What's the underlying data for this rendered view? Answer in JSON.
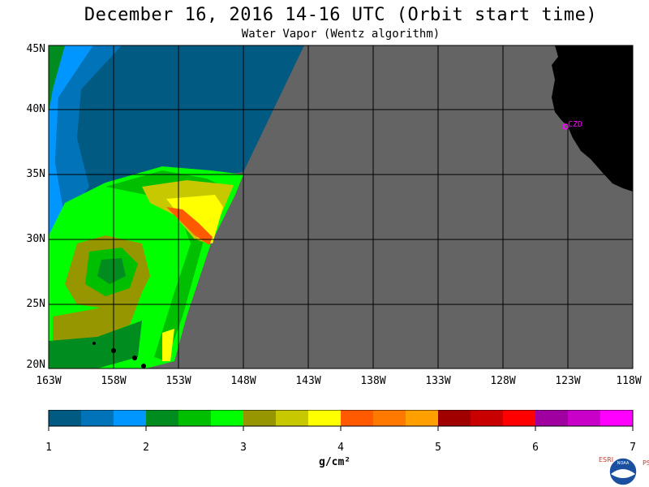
{
  "title": "December 16, 2016  14-16 UTC  (Orbit start time)",
  "subtitle": "Water Vapor (Wentz algorithm)",
  "lat_labels": [
    "45N",
    "40N",
    "35N",
    "30N",
    "25N",
    "20N"
  ],
  "lon_labels": [
    "163W",
    "158W",
    "153W",
    "148W",
    "143W",
    "138W",
    "133W",
    "128W",
    "123W",
    "118W"
  ],
  "colorbar": {
    "tick_labels": [
      "1",
      "2",
      "3",
      "4",
      "5",
      "6",
      "7"
    ],
    "unit": "g/cm²",
    "colors": [
      "#005a82",
      "#0073b9",
      "#0096ff",
      "#008c1e",
      "#00be00",
      "#00ff00",
      "#969600",
      "#c8c800",
      "#ffff00",
      "#ff5a00",
      "#ff7800",
      "#ffa000",
      "#a00000",
      "#c80000",
      "#ff0000",
      "#a000a0",
      "#c800c8",
      "#ff00ff"
    ]
  },
  "marker": {
    "label": "CZD",
    "lat": 38.6,
    "lon": 123.2,
    "color": "#ff00ff"
  },
  "colors": {
    "no_data": "#646464",
    "land": "#000000",
    "grid": "#000000"
  },
  "logo": {
    "left_text": "ESRL",
    "right_text": "PSD",
    "center_text": "NOAA"
  }
}
